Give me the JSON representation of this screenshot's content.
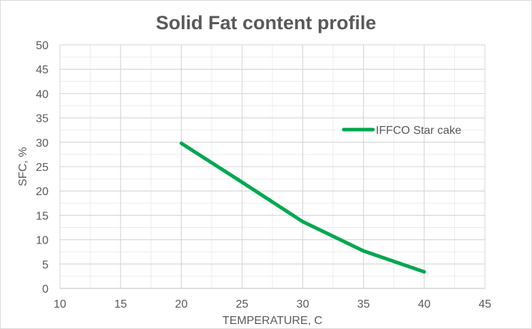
{
  "chart_data": {
    "type": "line",
    "title": "Solid Fat content profile",
    "xlabel": "TEMPERATURE, C",
    "ylabel": "SFC, %",
    "xlim": [
      10,
      45
    ],
    "ylim": [
      0,
      50
    ],
    "x_ticks": [
      "10",
      "15",
      "20",
      "25",
      "30",
      "35",
      "40",
      "45"
    ],
    "y_ticks": [
      "0",
      "5",
      "10",
      "15",
      "20",
      "25",
      "30",
      "35",
      "40",
      "45",
      "50"
    ],
    "minor_x_step": 2.5,
    "minor_y_step": 2.5,
    "grid": true,
    "legend_position": "right",
    "series": [
      {
        "name": "IFFCO Star cake",
        "color": "#00a84f",
        "x": [
          20,
          25,
          30,
          35,
          40
        ],
        "y": [
          29.8,
          21.8,
          13.7,
          7.7,
          3.4
        ]
      }
    ]
  }
}
